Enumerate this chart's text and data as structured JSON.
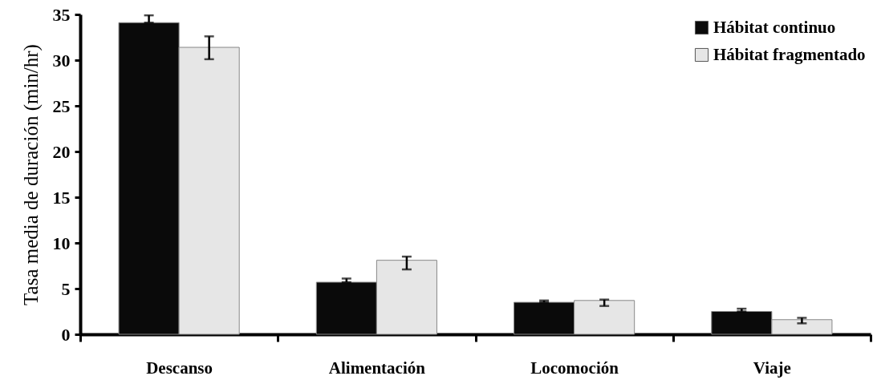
{
  "chart_data": {
    "type": "bar",
    "ylabel": "Tasa media de duración (min/hr)",
    "categories": [
      "Descanso",
      "Alimentación",
      "Locomoción",
      "Viaje"
    ],
    "series": [
      {
        "name": "Hábitat continuo",
        "color": "#0a0a0a",
        "values": [
          34.1,
          5.7,
          3.5,
          2.5
        ],
        "errors": [
          [
            34.1,
            34.9
          ],
          [
            5.7,
            6.1
          ],
          [
            3.5,
            3.7
          ],
          [
            2.5,
            2.8
          ]
        ]
      },
      {
        "name": "Hábitat fragmentado",
        "color": "#e6e6e6",
        "values": [
          31.4,
          8.1,
          3.7,
          1.6
        ],
        "errors": [
          [
            30.1,
            32.6
          ],
          [
            7.1,
            8.5
          ],
          [
            3.1,
            3.8
          ],
          [
            1.2,
            1.8
          ]
        ]
      }
    ],
    "ylim": [
      0,
      35
    ],
    "yticks": [
      0,
      5,
      10,
      15,
      20,
      25,
      30,
      35
    ],
    "grid": false,
    "legend": "top right"
  }
}
